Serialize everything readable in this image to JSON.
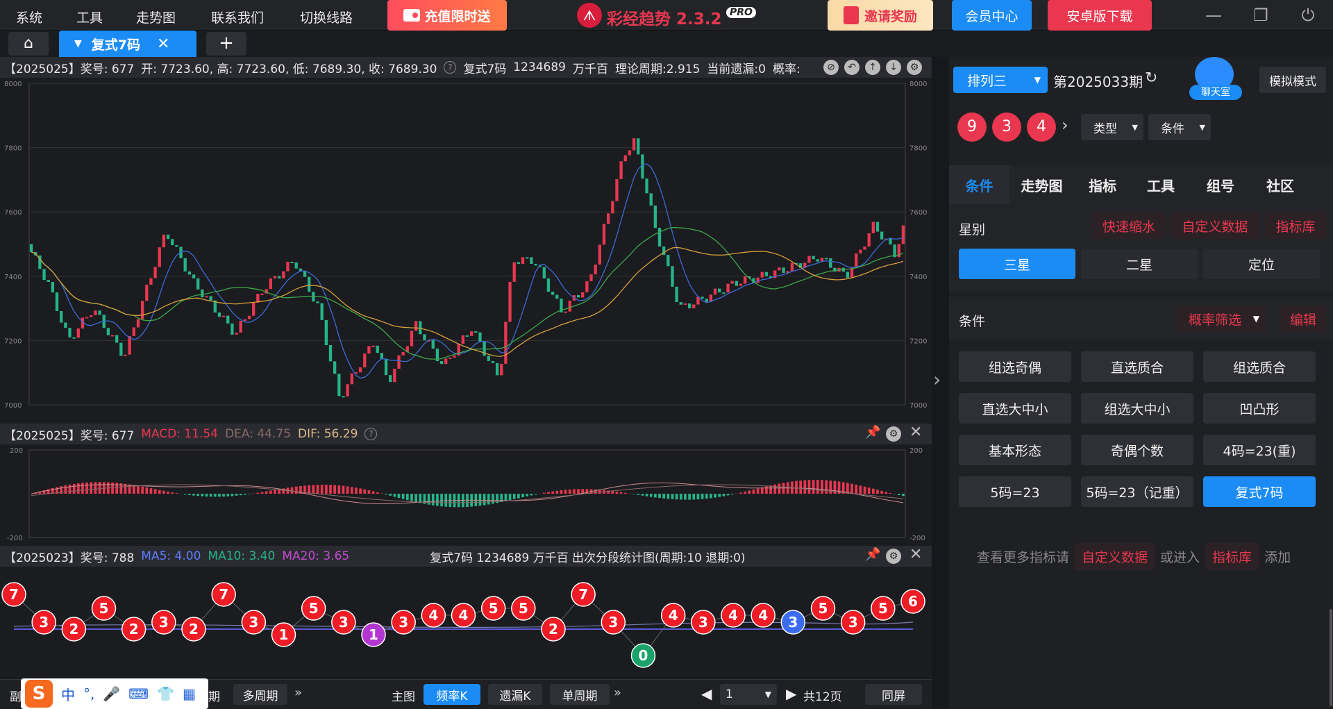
{
  "menu": [
    "系统",
    "工具",
    "走势图",
    "联系我们",
    "切换线路"
  ],
  "promo_recharge": "充值限时送",
  "app_title": "彩经趋势 2.3.2",
  "app_badge": "PRO",
  "invite": "邀请奖励",
  "member": "会员中心",
  "android": "安卓版下载",
  "tab": {
    "label": "复式7码"
  },
  "k_header": {
    "period": "【2025025】奖号: 677",
    "ohlc": "开: 7723.60, 高: 7723.60, 低: 7689.30, 收: 7689.30",
    "type": "复式7码",
    "digits": "1234689",
    "pos": "万千百",
    "cycle": "理论周期:2.915",
    "miss": "当前遗漏:0",
    "prob": "概率:"
  },
  "k_axis": [
    "8000",
    "7800",
    "7600",
    "7400",
    "7200",
    "7000"
  ],
  "macd_header": {
    "period": "【2025025】奖号: 677",
    "macd": "MACD: 11.54",
    "dea": "DEA: 44.75",
    "dif": "DIF: 56.29"
  },
  "macd_axis": [
    "200",
    "-200"
  ],
  "ball_header": {
    "period": "【2025023】奖号: 788",
    "ma5": "MA5: 4.00",
    "ma10": "MA10: 3.40",
    "ma20": "MA20: 3.65",
    "stat": "复式7码   1234689      万千百   出次分段统计图(周期:10   退期:0)"
  },
  "balls": [
    7,
    3,
    2,
    5,
    2,
    3,
    2,
    7,
    3,
    1,
    5,
    3,
    1,
    3,
    4,
    4,
    5,
    5,
    2,
    7,
    3,
    0,
    4,
    3,
    4,
    4,
    3,
    5,
    3,
    5,
    6
  ],
  "right": {
    "lottery": "排列三",
    "issue": "第2025033期",
    "chat": "聊天室",
    "sim": "模拟模式",
    "numbers": [
      "9",
      "3",
      "4"
    ],
    "type_sel": "类型",
    "cond_sel": "条件",
    "tabs": [
      "条件",
      "走势图",
      "指标",
      "工具",
      "组号",
      "社区"
    ],
    "star_label": "星别",
    "quick": "快速缩水",
    "custom": "自定义数据",
    "lib": "指标库",
    "stars": [
      "三星",
      "二星",
      "定位"
    ],
    "cond_label": "条件",
    "prob_filter": "概率筛选",
    "edit": "编辑",
    "conditions": [
      "组选奇偶",
      "直选质合",
      "组选质合",
      "直选大中小",
      "组选大中小",
      "凹凸形",
      "基本形态",
      "奇偶个数",
      "4码=23(重)",
      "5码=23",
      "5码=23（记重）",
      "复式7码"
    ],
    "more_1": "查看更多指标请",
    "more_custom": "自定义数据",
    "more_2": "或进入",
    "more_lib": "指标库",
    "more_3": "添加"
  },
  "bottom": {
    "sub": "副图",
    "multi": "多周期",
    "main": "主图",
    "freq": "频率K",
    "miss": "遗漏K",
    "single": "单周期",
    "page": "1",
    "total": "共12页",
    "same": "同屏",
    "ime": "中"
  }
}
